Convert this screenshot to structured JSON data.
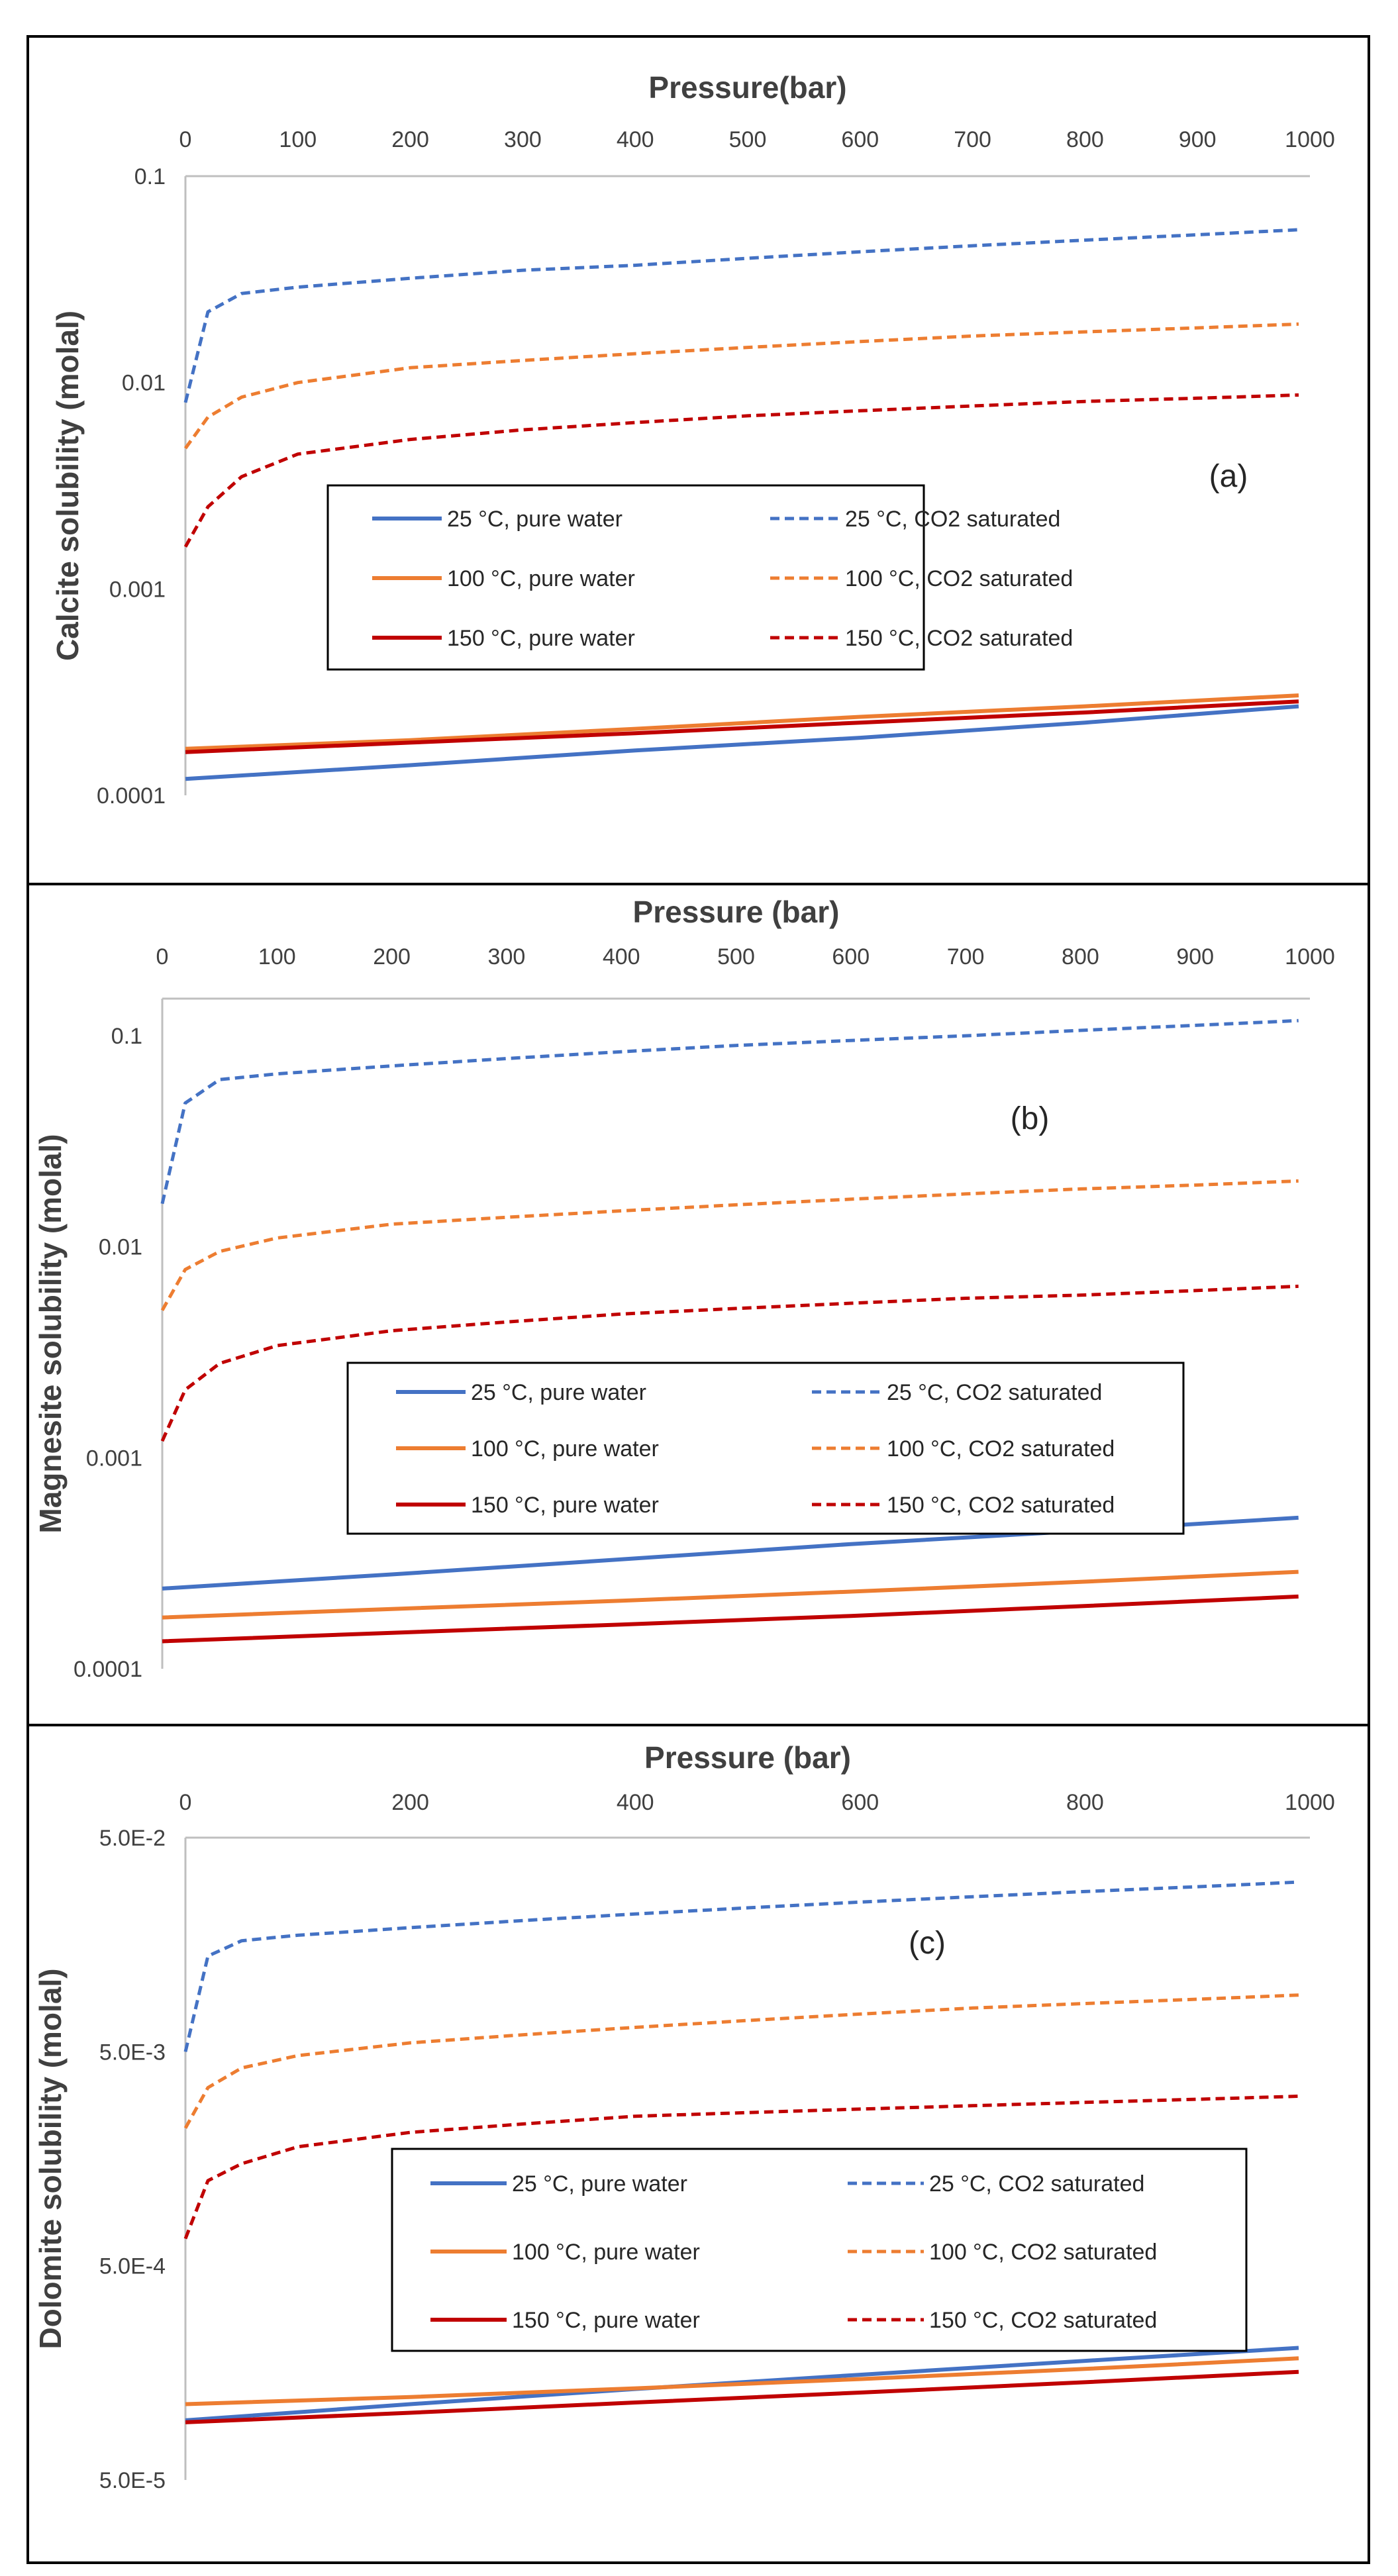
{
  "colors": {
    "series_25": "#4472C4",
    "series_100": "#ED7D31",
    "series_150": "#C00000",
    "axis": "#BFBFBF",
    "frame": "#000000"
  },
  "legend_labels": [
    "25 °C, pure water",
    "25 °C, CO2 saturated",
    "100 °C, pure water",
    "100 °C, CO2 saturated",
    "150 °C, pure water",
    "150 °C, CO2 saturated"
  ],
  "chart_data": [
    {
      "type": "line",
      "panel_label": "(a)",
      "xlabel": "Pressure(bar)",
      "ylabel": "Calcite solubility (molal)",
      "xlim": [
        0,
        1000
      ],
      "ylim": [
        0.0001,
        0.1
      ],
      "y_scale": "log",
      "x_ticks": [
        0,
        100,
        200,
        300,
        400,
        500,
        600,
        700,
        800,
        900,
        1000
      ],
      "y_ticks": [
        0.0001,
        0.001,
        0.01,
        0.1
      ],
      "y_tick_labels": [
        "0.0001",
        "0.001",
        "0.01",
        "0.1"
      ],
      "x_axis_position": "top",
      "grid": false,
      "legend_position": "center",
      "series": [
        {
          "name": "25 °C, pure water",
          "style": "solid",
          "color": "#4472C4",
          "x": [
            0,
            200,
            400,
            600,
            800,
            990
          ],
          "y": [
            0.00012,
            0.00014,
            0.000165,
            0.00019,
            0.000225,
            0.00027
          ]
        },
        {
          "name": "25 °C, CO2 saturated",
          "style": "dashed",
          "color": "#4472C4",
          "x": [
            0,
            20,
            50,
            100,
            200,
            300,
            400,
            500,
            600,
            700,
            800,
            900,
            990
          ],
          "y": [
            0.008,
            0.022,
            0.027,
            0.029,
            0.032,
            0.035,
            0.037,
            0.04,
            0.043,
            0.046,
            0.049,
            0.052,
            0.055
          ]
        },
        {
          "name": "100 °C, pure water",
          "style": "solid",
          "color": "#ED7D31",
          "x": [
            0,
            200,
            400,
            600,
            800,
            990
          ],
          "y": [
            0.000168,
            0.000185,
            0.00021,
            0.00024,
            0.00027,
            0.000305
          ]
        },
        {
          "name": "100 °C, CO2 saturated",
          "style": "dashed",
          "color": "#ED7D31",
          "x": [
            0,
            20,
            50,
            100,
            200,
            300,
            400,
            500,
            600,
            700,
            800,
            900,
            990
          ],
          "y": [
            0.0048,
            0.0068,
            0.0085,
            0.01,
            0.0118,
            0.0128,
            0.0138,
            0.0148,
            0.0158,
            0.0168,
            0.0176,
            0.0184,
            0.0192
          ]
        },
        {
          "name": "150 °C, pure water",
          "style": "solid",
          "color": "#C00000",
          "x": [
            0,
            200,
            400,
            600,
            800,
            990
          ],
          "y": [
            0.000162,
            0.00018,
            0.0002,
            0.000225,
            0.000252,
            0.000285
          ]
        },
        {
          "name": "150 °C, CO2 saturated",
          "style": "dashed",
          "color": "#C00000",
          "x": [
            0,
            20,
            50,
            100,
            200,
            300,
            400,
            500,
            600,
            700,
            800,
            900,
            990
          ],
          "y": [
            0.0016,
            0.0025,
            0.0035,
            0.0045,
            0.0053,
            0.0059,
            0.0064,
            0.0069,
            0.0073,
            0.0077,
            0.0081,
            0.0084,
            0.0087
          ]
        }
      ]
    },
    {
      "type": "line",
      "panel_label": "(b)",
      "xlabel": "Pressure (bar)",
      "ylabel": "Magnesite solubility (molal)",
      "xlim": [
        0,
        1000
      ],
      "ylim": [
        0.0001,
        0.15
      ],
      "y_scale": "log",
      "x_ticks": [
        0,
        100,
        200,
        300,
        400,
        500,
        600,
        700,
        800,
        900,
        1000
      ],
      "y_ticks": [
        0.0001,
        0.001,
        0.01,
        0.1
      ],
      "y_tick_labels": [
        "0.0001",
        "0.001",
        "0.01",
        "0.1"
      ],
      "x_axis_position": "top",
      "grid": false,
      "legend_position": "center",
      "series": [
        {
          "name": "25 °C, pure water",
          "style": "solid",
          "color": "#4472C4",
          "x": [
            0,
            200,
            400,
            600,
            800,
            990
          ],
          "y": [
            0.00024,
            0.00028,
            0.00033,
            0.00039,
            0.00045,
            0.00052
          ]
        },
        {
          "name": "25 °C, CO2 saturated",
          "style": "dashed",
          "color": "#4472C4",
          "x": [
            0,
            20,
            50,
            100,
            200,
            300,
            400,
            500,
            600,
            700,
            800,
            900,
            990
          ],
          "y": [
            0.016,
            0.048,
            0.062,
            0.066,
            0.072,
            0.078,
            0.084,
            0.09,
            0.095,
            0.1,
            0.106,
            0.112,
            0.118
          ]
        },
        {
          "name": "100 °C, pure water",
          "style": "solid",
          "color": "#ED7D31",
          "x": [
            0,
            200,
            400,
            600,
            800,
            990
          ],
          "y": [
            0.000175,
            0.000192,
            0.00021,
            0.000232,
            0.000258,
            0.000288
          ]
        },
        {
          "name": "100 °C, CO2 saturated",
          "style": "dashed",
          "color": "#ED7D31",
          "x": [
            0,
            20,
            50,
            100,
            200,
            300,
            400,
            500,
            600,
            700,
            800,
            900,
            990
          ],
          "y": [
            0.005,
            0.0078,
            0.0095,
            0.011,
            0.0128,
            0.0138,
            0.0148,
            0.0158,
            0.0168,
            0.0178,
            0.0188,
            0.0196,
            0.0205
          ]
        },
        {
          "name": "150 °C, pure water",
          "style": "solid",
          "color": "#C00000",
          "x": [
            0,
            200,
            400,
            600,
            800,
            990
          ],
          "y": [
            0.000135,
            0.000148,
            0.000162,
            0.000178,
            0.000198,
            0.00022
          ]
        },
        {
          "name": "150 °C, CO2 saturated",
          "style": "dashed",
          "color": "#C00000",
          "x": [
            0,
            20,
            50,
            100,
            200,
            300,
            400,
            500,
            600,
            700,
            800,
            900,
            990
          ],
          "y": [
            0.0012,
            0.0021,
            0.0028,
            0.0034,
            0.004,
            0.0044,
            0.0048,
            0.0051,
            0.0054,
            0.0057,
            0.0059,
            0.0062,
            0.0065
          ]
        }
      ]
    },
    {
      "type": "line",
      "panel_label": "(c)",
      "xlabel": "Pressure (bar)",
      "ylabel": "Dolomite solubility (molal)",
      "xlim": [
        0,
        1000
      ],
      "ylim": [
        5e-05,
        0.05
      ],
      "y_scale": "log",
      "x_ticks": [
        0,
        200,
        400,
        600,
        800,
        1000
      ],
      "y_ticks": [
        5e-05,
        0.0005,
        0.005,
        0.05
      ],
      "y_tick_labels": [
        "5.0E-5",
        "5.0E-4",
        "5.0E-3",
        "5.0E-2"
      ],
      "x_axis_position": "top",
      "grid": false,
      "legend_position": "bottom-center",
      "series": [
        {
          "name": "25 °C, pure water",
          "style": "solid",
          "color": "#4472C4",
          "x": [
            0,
            200,
            400,
            600,
            800,
            990
          ],
          "y": [
            9.5e-05,
            0.000113,
            0.000133,
            0.000155,
            0.00018,
            0.000207
          ]
        },
        {
          "name": "25 °C, CO2 saturated",
          "style": "dashed",
          "color": "#4472C4",
          "x": [
            0,
            20,
            50,
            100,
            200,
            300,
            400,
            500,
            600,
            700,
            800,
            900,
            990
          ],
          "y": [
            0.005,
            0.014,
            0.0165,
            0.0175,
            0.019,
            0.0205,
            0.022,
            0.0235,
            0.025,
            0.0265,
            0.028,
            0.0295,
            0.031
          ]
        },
        {
          "name": "100 °C, pure water",
          "style": "solid",
          "color": "#ED7D31",
          "x": [
            0,
            200,
            400,
            600,
            800,
            990
          ],
          "y": [
            0.000113,
            0.000122,
            0.000134,
            0.000148,
            0.000165,
            0.000185
          ]
        },
        {
          "name": "100 °C, CO2 saturated",
          "style": "dashed",
          "color": "#ED7D31",
          "x": [
            0,
            20,
            50,
            100,
            200,
            300,
            400,
            500,
            600,
            700,
            800,
            900,
            990
          ],
          "y": [
            0.0022,
            0.0034,
            0.0042,
            0.0048,
            0.0055,
            0.006,
            0.0065,
            0.007,
            0.0075,
            0.008,
            0.0084,
            0.0088,
            0.0092
          ]
        },
        {
          "name": "150 °C, pure water",
          "style": "solid",
          "color": "#C00000",
          "x": [
            0,
            200,
            400,
            600,
            800,
            990
          ],
          "y": [
            9.3e-05,
            0.000103,
            0.000115,
            0.000128,
            0.000143,
            0.00016
          ]
        },
        {
          "name": "150 °C, CO2 saturated",
          "style": "dashed",
          "color": "#C00000",
          "x": [
            0,
            20,
            50,
            100,
            200,
            300,
            400,
            500,
            600,
            700,
            800,
            900,
            990
          ],
          "y": [
            0.00067,
            0.00125,
            0.0015,
            0.0018,
            0.0021,
            0.0023,
            0.0025,
            0.0026,
            0.0027,
            0.0028,
            0.0029,
            0.003,
            0.0031
          ]
        }
      ]
    }
  ]
}
